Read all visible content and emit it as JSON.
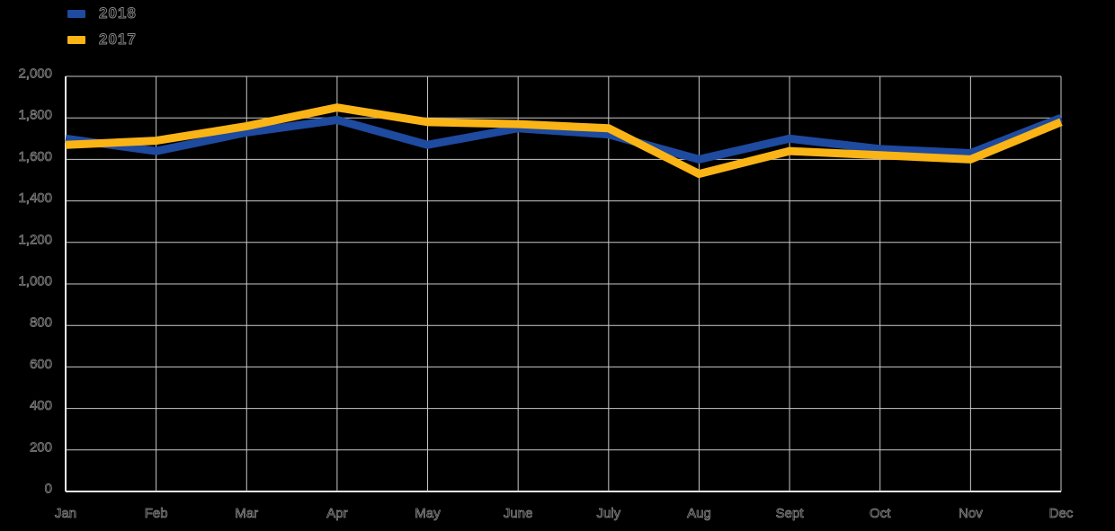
{
  "chart_data": {
    "type": "line",
    "title": "",
    "xlabel": "",
    "ylabel": "",
    "categories": [
      "Jan",
      "Feb",
      "Mar",
      "Apr",
      "May",
      "June",
      "July",
      "Aug",
      "Sept",
      "Oct",
      "Nov",
      "Dec"
    ],
    "series": [
      {
        "name": "2018",
        "color": "#1E4A9F",
        "values": [
          1700,
          1640,
          1730,
          1790,
          1670,
          1750,
          1720,
          1600,
          1700,
          1650,
          1630,
          1800
        ]
      },
      {
        "name": "2017",
        "color": "#FAB415",
        "values": [
          1670,
          1690,
          1760,
          1850,
          1780,
          1770,
          1750,
          1530,
          1640,
          1620,
          1600,
          1780
        ]
      }
    ],
    "ylim": [
      0,
      2000
    ],
    "ytick_step": 200,
    "y_tick_labels": [
      "0",
      "200",
      "400",
      "600",
      "800",
      "1,000",
      "1,200",
      "1,400",
      "1,600",
      "1,800",
      "2,000"
    ],
    "grid": true,
    "legend_position": "top-left",
    "colors": {
      "background": "#000000",
      "gridline": "#c9c9c9",
      "axis_line": "#e8e8e8",
      "text_outline": "#8a8a8a"
    }
  }
}
